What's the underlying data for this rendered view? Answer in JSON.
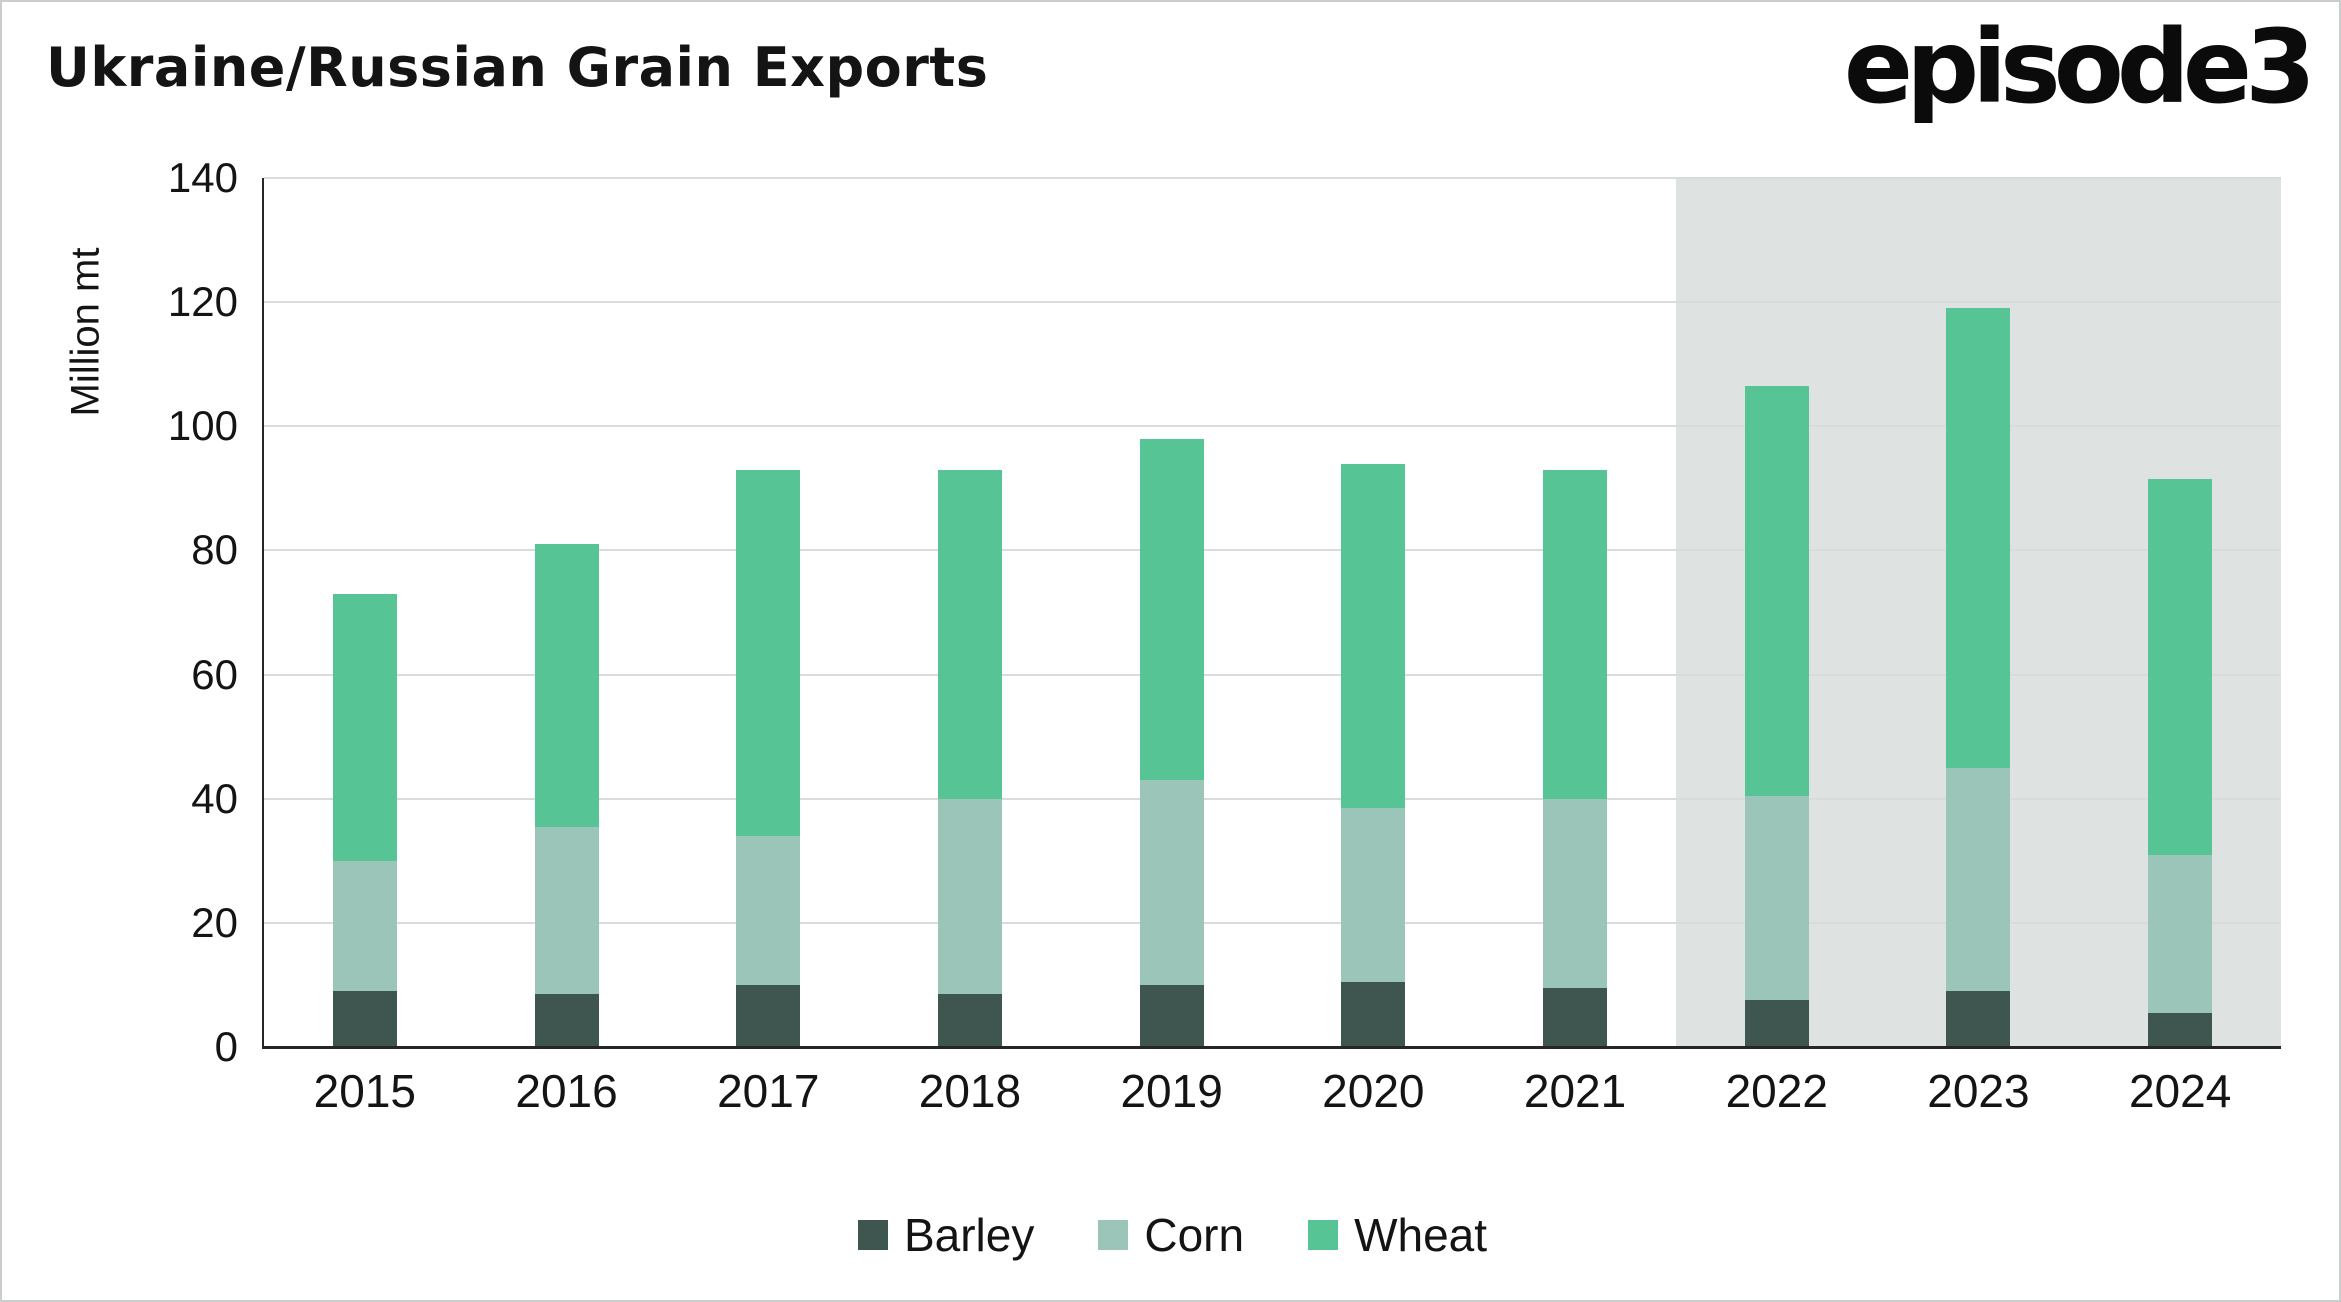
{
  "title": "Ukraine/Russian Grain Exports",
  "brand": {
    "logo_text": "episode3"
  },
  "legend": {
    "items": [
      {
        "label": "Barley"
      },
      {
        "label": "Corn"
      },
      {
        "label": "Wheat"
      }
    ]
  },
  "chart_data": {
    "type": "bar",
    "stacked": true,
    "title": "Ukraine/Russian Grain Exports",
    "ylabel": "Million mt",
    "ylim": [
      0,
      140
    ],
    "yticks": [
      0,
      20,
      40,
      60,
      80,
      100,
      120,
      140
    ],
    "grid": "horizontal",
    "legend_position": "bottom",
    "categories": [
      "2015",
      "2016",
      "2017",
      "2018",
      "2019",
      "2020",
      "2021",
      "2022",
      "2023",
      "2024"
    ],
    "series": [
      {
        "name": "Barley",
        "color": "#3e564f",
        "values": [
          9,
          8.5,
          10,
          8.5,
          10,
          10.5,
          9.5,
          7.5,
          9,
          5.5
        ]
      },
      {
        "name": "Corn",
        "color": "#9cc5ba",
        "values": [
          21,
          27,
          24,
          31.5,
          33,
          28,
          30.5,
          33,
          36,
          25.5
        ]
      },
      {
        "name": "Wheat",
        "color": "#56c494",
        "values": [
          43,
          45.5,
          59,
          53,
          55,
          55.5,
          53,
          66,
          74,
          60.5
        ]
      }
    ],
    "totals": [
      73,
      81,
      93,
      93,
      98,
      94,
      93,
      106.5,
      119,
      91.5
    ],
    "highlight_region": {
      "categories_from": "2022",
      "categories_to": "2024",
      "fill": "#dee2e1"
    }
  }
}
